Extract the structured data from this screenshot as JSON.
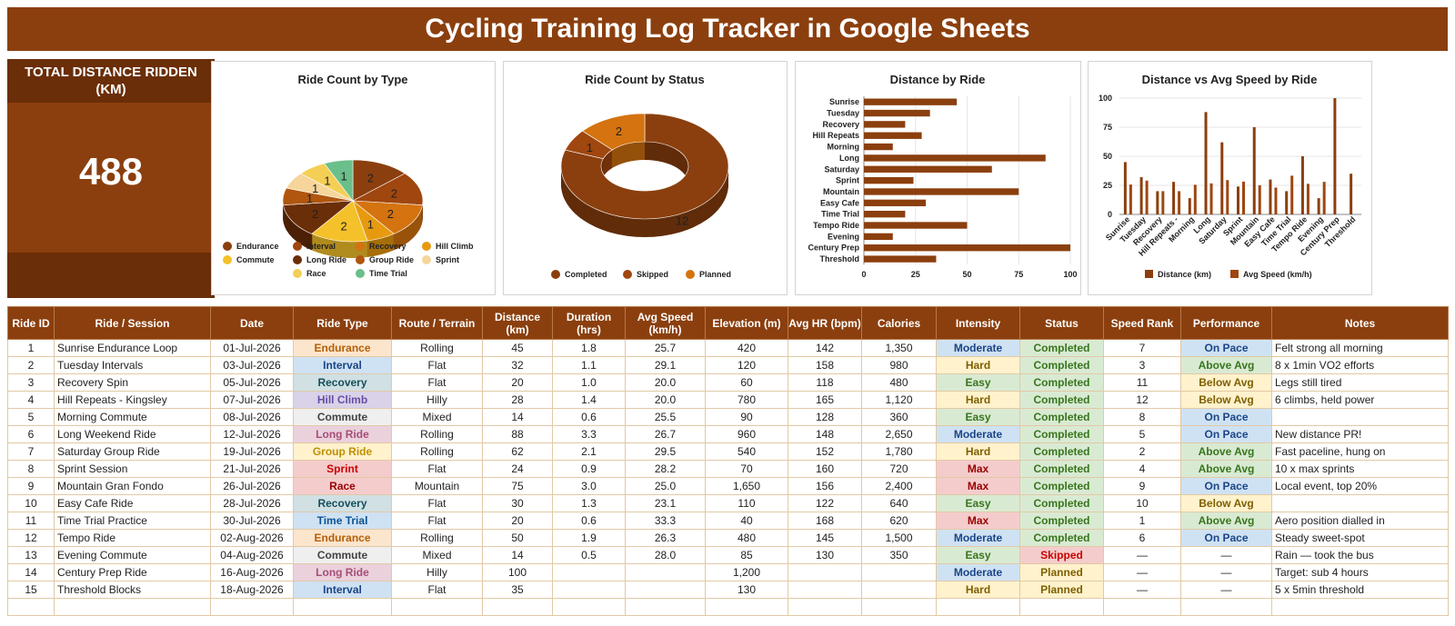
{
  "title": "Cycling Training Log Tracker in Google Sheets",
  "kpi": {
    "label": "TOTAL DISTANCE RIDDEN (KM)",
    "value": "488"
  },
  "colors": {
    "brand": "#8b3f0e",
    "dark": "#6a2e08"
  },
  "charts": {
    "type_pie": {
      "title": "Ride Count by Type"
    },
    "status_donut": {
      "title": "Ride Count by Status"
    },
    "distance_bar": {
      "title": "Distance by Ride"
    },
    "dist_speed": {
      "title": "Distance vs Avg Speed by Ride"
    }
  },
  "chart_data": [
    {
      "type": "pie",
      "title": "Ride Count by Type",
      "categories": [
        "Endurance",
        "Interval",
        "Recovery",
        "Hill Climb",
        "Commute",
        "Long Ride",
        "Group Ride",
        "Sprint",
        "Race",
        "Time Trial"
      ],
      "values": [
        2,
        2,
        2,
        1,
        2,
        2,
        1,
        1,
        1,
        1
      ],
      "colors": [
        "#8b3f0e",
        "#a0460f",
        "#d4730f",
        "#e79a0f",
        "#f5c12a",
        "#6a2e08",
        "#b0560f",
        "#f5d59a",
        "#f3cf55",
        "#6abf8a"
      ],
      "legend": "bottom"
    },
    {
      "type": "pie",
      "title": "Ride Count by Status",
      "categories": [
        "Completed",
        "Skipped",
        "Planned"
      ],
      "values": [
        12,
        1,
        2
      ],
      "colors": [
        "#8b3f0e",
        "#a0460f",
        "#d4730f"
      ],
      "legend": "bottom"
    },
    {
      "type": "bar",
      "title": "Distance by Ride",
      "orientation": "horizontal",
      "categories": [
        "Sunrise",
        "Tuesday",
        "Recovery",
        "Hill Repeats",
        "Morning",
        "Long",
        "Saturday",
        "Sprint",
        "Mountain",
        "Easy Cafe",
        "Time Trial",
        "Tempo Ride",
        "Evening",
        "Century Prep",
        "Threshold"
      ],
      "values": [
        45,
        32,
        20,
        28,
        14,
        88,
        62,
        24,
        75,
        30,
        20,
        50,
        14,
        100,
        35
      ],
      "xlim": [
        0,
        100
      ],
      "ticks": [
        0,
        25,
        50,
        75,
        100
      ]
    },
    {
      "type": "bar",
      "title": "Distance vs Avg Speed by Ride",
      "categories": [
        "Sunrise",
        "Tuesday",
        "Recovery",
        "Hill Repeats -",
        "Morning",
        "Long",
        "Saturday",
        "Sprint",
        "Mountain",
        "Easy Cafe",
        "Time Trial",
        "Tempo Ride",
        "Evening",
        "Century Prep",
        "Threshold"
      ],
      "series": [
        {
          "name": "Distance (km)",
          "values": [
            45,
            32,
            20,
            28,
            14,
            88,
            62,
            24,
            75,
            30,
            20,
            50,
            14,
            100,
            35
          ],
          "color": "#8b3f0e"
        },
        {
          "name": "Avg Speed (km/h)",
          "values": [
            25.7,
            29.1,
            20.0,
            20.0,
            25.5,
            26.7,
            29.5,
            28.2,
            25.0,
            23.1,
            33.3,
            26.3,
            28.0,
            null,
            null
          ],
          "color": "#a0460f"
        }
      ],
      "ylim": [
        0,
        100
      ],
      "ticks": [
        0,
        25,
        50,
        75,
        100
      ],
      "legend": "bottom"
    }
  ],
  "table": {
    "headers": [
      "Ride ID",
      "Ride / Session",
      "Date",
      "Ride Type",
      "Route / Terrain",
      "Distance (km)",
      "Duration (hrs)",
      "Avg Speed (km/h)",
      "Elevation (m)",
      "Avg HR (bpm)",
      "Calories",
      "Intensity",
      "Status",
      "Speed Rank",
      "Performance",
      "Notes"
    ],
    "rows": [
      [
        "1",
        "Sunrise Endurance Loop",
        "01-Jul-2026",
        "Endurance",
        "Rolling",
        "45",
        "1.8",
        "25.7",
        "420",
        "142",
        "1,350",
        "Moderate",
        "Completed",
        "7",
        "On Pace",
        "Felt strong all morning"
      ],
      [
        "2",
        "Tuesday Intervals",
        "03-Jul-2026",
        "Interval",
        "Flat",
        "32",
        "1.1",
        "29.1",
        "120",
        "158",
        "980",
        "Hard",
        "Completed",
        "3",
        "Above Avg",
        "8 x 1min VO2 efforts"
      ],
      [
        "3",
        "Recovery Spin",
        "05-Jul-2026",
        "Recovery",
        "Flat",
        "20",
        "1.0",
        "20.0",
        "60",
        "118",
        "480",
        "Easy",
        "Completed",
        "11",
        "Below Avg",
        "Legs still tired"
      ],
      [
        "4",
        "Hill Repeats - Kingsley",
        "07-Jul-2026",
        "Hill Climb",
        "Hilly",
        "28",
        "1.4",
        "20.0",
        "780",
        "165",
        "1,120",
        "Hard",
        "Completed",
        "12",
        "Below Avg",
        "6 climbs, held power"
      ],
      [
        "5",
        "Morning Commute",
        "08-Jul-2026",
        "Commute",
        "Mixed",
        "14",
        "0.6",
        "25.5",
        "90",
        "128",
        "360",
        "Easy",
        "Completed",
        "8",
        "On Pace",
        ""
      ],
      [
        "6",
        "Long Weekend Ride",
        "12-Jul-2026",
        "Long Ride",
        "Rolling",
        "88",
        "3.3",
        "26.7",
        "960",
        "148",
        "2,650",
        "Moderate",
        "Completed",
        "5",
        "On Pace",
        "New distance PR!"
      ],
      [
        "7",
        "Saturday Group Ride",
        "19-Jul-2026",
        "Group Ride",
        "Rolling",
        "62",
        "2.1",
        "29.5",
        "540",
        "152",
        "1,780",
        "Hard",
        "Completed",
        "2",
        "Above Avg",
        "Fast paceline, hung on"
      ],
      [
        "8",
        "Sprint Session",
        "21-Jul-2026",
        "Sprint",
        "Flat",
        "24",
        "0.9",
        "28.2",
        "70",
        "160",
        "720",
        "Max",
        "Completed",
        "4",
        "Above Avg",
        "10 x max sprints"
      ],
      [
        "9",
        "Mountain Gran Fondo",
        "26-Jul-2026",
        "Race",
        "Mountain",
        "75",
        "3.0",
        "25.0",
        "1,650",
        "156",
        "2,400",
        "Max",
        "Completed",
        "9",
        "On Pace",
        "Local event, top 20%"
      ],
      [
        "10",
        "Easy Cafe Ride",
        "28-Jul-2026",
        "Recovery",
        "Flat",
        "30",
        "1.3",
        "23.1",
        "110",
        "122",
        "640",
        "Easy",
        "Completed",
        "10",
        "Below Avg",
        ""
      ],
      [
        "11",
        "Time Trial Practice",
        "30-Jul-2026",
        "Time Trial",
        "Flat",
        "20",
        "0.6",
        "33.3",
        "40",
        "168",
        "620",
        "Max",
        "Completed",
        "1",
        "Above Avg",
        "Aero position dialled in"
      ],
      [
        "12",
        "Tempo Ride",
        "02-Aug-2026",
        "Endurance",
        "Rolling",
        "50",
        "1.9",
        "26.3",
        "480",
        "145",
        "1,500",
        "Moderate",
        "Completed",
        "6",
        "On Pace",
        "Steady sweet-spot"
      ],
      [
        "13",
        "Evening Commute",
        "04-Aug-2026",
        "Commute",
        "Mixed",
        "14",
        "0.5",
        "28.0",
        "85",
        "130",
        "350",
        "Easy",
        "Skipped",
        "—",
        "—",
        "Rain — took the bus"
      ],
      [
        "14",
        "Century Prep Ride",
        "16-Aug-2026",
        "Long Ride",
        "Hilly",
        "100",
        "",
        "",
        "1,200",
        "",
        "",
        "Moderate",
        "Planned",
        "—",
        "—",
        "Target: sub 4 hours"
      ],
      [
        "15",
        "Threshold Blocks",
        "18-Aug-2026",
        "Interval",
        "Flat",
        "35",
        "",
        "",
        "130",
        "",
        "",
        "Hard",
        "Planned",
        "—",
        "—",
        "5 x 5min threshold"
      ]
    ]
  }
}
